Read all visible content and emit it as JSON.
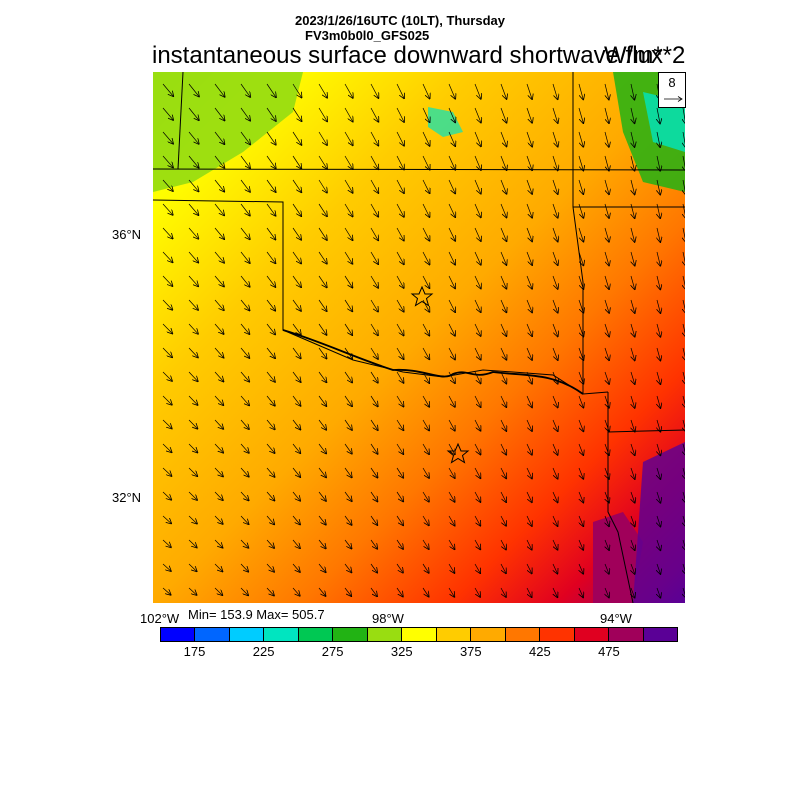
{
  "header": {
    "datetime": "2023/1/26/16UTC (10LT), Thursday",
    "model": "FV3m0b0l0_GFS025",
    "title": "instantaneous surface downward shortwave flux",
    "units": "W/m**2"
  },
  "vector_reference": {
    "value": "8"
  },
  "axes": {
    "lat_labels": [
      "36°N",
      "32°N"
    ],
    "lon_labels": [
      "102°W",
      "98°W",
      "94°W"
    ]
  },
  "stats": {
    "text": "Min= 153.9 Max= 505.7"
  },
  "colorbar": {
    "colors": [
      "#0000ff",
      "#0066ff",
      "#00ccff",
      "#00e5c0",
      "#00c853",
      "#22b314",
      "#99dd11",
      "#ffff00",
      "#ffcc00",
      "#ffaa00",
      "#ff7700",
      "#ff3300",
      "#e00020",
      "#a0005a",
      "#5a0096"
    ],
    "tick_labels": [
      "175",
      "225",
      "275",
      "325",
      "375",
      "425",
      "475"
    ]
  },
  "markers": [
    {
      "name": "star-marker-oklahoma-city"
    },
    {
      "name": "star-marker-dallas"
    }
  ]
}
